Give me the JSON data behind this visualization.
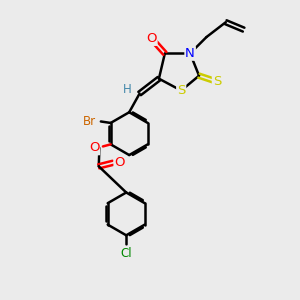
{
  "bg_color": "#ebebeb",
  "bond_color": "#000000",
  "bond_width": 1.8,
  "atom_colors": {
    "O": "#ff0000",
    "N": "#0000ff",
    "S": "#cccc00",
    "Br": "#cc6600",
    "Cl": "#008800",
    "H": "#4488aa",
    "C": "#000000"
  },
  "font_size": 8.5,
  "figsize": [
    3.0,
    3.0
  ],
  "dpi": 100
}
